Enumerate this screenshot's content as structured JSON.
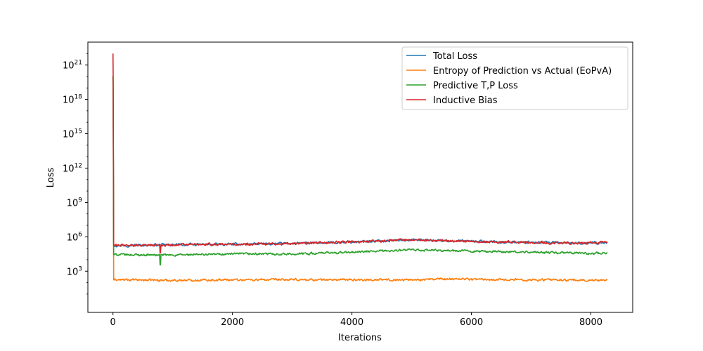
{
  "chart_data": {
    "type": "line",
    "title": "",
    "xlabel": "Iterations",
    "ylabel": "Loss",
    "xlim": [
      -420,
      8700
    ],
    "ylim_log10": [
      -0.6,
      23.0
    ],
    "yscale": "log",
    "grid": false,
    "legend_position": "top-right",
    "x_ticks": [
      {
        "value": 0,
        "label": "0"
      },
      {
        "value": 2000,
        "label": "2000"
      },
      {
        "value": 4000,
        "label": "4000"
      },
      {
        "value": 6000,
        "label": "6000"
      },
      {
        "value": 8000,
        "label": "8000"
      }
    ],
    "y_ticks": [
      {
        "exp": 3,
        "base": "10",
        "sup": "3"
      },
      {
        "exp": 6,
        "base": "10",
        "sup": "6"
      },
      {
        "exp": 9,
        "base": "10",
        "sup": "9"
      },
      {
        "exp": 12,
        "base": "10",
        "sup": "12"
      },
      {
        "exp": 15,
        "base": "10",
        "sup": "15"
      },
      {
        "exp": 18,
        "base": "10",
        "sup": "18"
      },
      {
        "exp": 21,
        "base": "10",
        "sup": "21"
      }
    ],
    "series": [
      {
        "name": "Total Loss",
        "color": "#1f77b4",
        "spike_peak_log10": 20.0,
        "baseline_log10": [
          [
            0,
            5.25
          ],
          [
            1000,
            5.3
          ],
          [
            2000,
            5.35
          ],
          [
            3000,
            5.4
          ],
          [
            4000,
            5.55
          ],
          [
            5000,
            5.75
          ],
          [
            6000,
            5.6
          ],
          [
            7000,
            5.5
          ],
          [
            8000,
            5.45
          ],
          [
            8280,
            5.5
          ]
        ],
        "noise_log10": 0.18,
        "dips": []
      },
      {
        "name": "Entropy of Prediction vs Actual (EoPvA)",
        "color": "#ff7f0e",
        "spike_peak_log10": 20.0,
        "baseline_log10": [
          [
            0,
            2.25
          ],
          [
            1000,
            2.2
          ],
          [
            2000,
            2.25
          ],
          [
            3000,
            2.25
          ],
          [
            4000,
            2.25
          ],
          [
            5000,
            2.25
          ],
          [
            5800,
            2.35
          ],
          [
            6000,
            2.3
          ],
          [
            7000,
            2.25
          ],
          [
            8000,
            2.2
          ],
          [
            8280,
            2.25
          ]
        ],
        "noise_log10": 0.16,
        "dips": []
      },
      {
        "name": "Predictive T,P Loss",
        "color": "#2ca02c",
        "spike_peak_log10": 20.0,
        "baseline_log10": [
          [
            0,
            4.45
          ],
          [
            1000,
            4.4
          ],
          [
            2000,
            4.5
          ],
          [
            3000,
            4.5
          ],
          [
            4000,
            4.65
          ],
          [
            5000,
            4.85
          ],
          [
            6000,
            4.75
          ],
          [
            7000,
            4.65
          ],
          [
            8000,
            4.55
          ],
          [
            8280,
            4.6
          ]
        ],
        "noise_log10": 0.16,
        "dips": [
          {
            "x": 790,
            "log10": 3.55
          }
        ]
      },
      {
        "name": "Inductive Bias",
        "color": "#d62728",
        "spike_peak_log10": 22.0,
        "baseline_log10": [
          [
            0,
            5.25
          ],
          [
            1000,
            5.3
          ],
          [
            2000,
            5.35
          ],
          [
            3000,
            5.4
          ],
          [
            4000,
            5.55
          ],
          [
            5000,
            5.75
          ],
          [
            6000,
            5.6
          ],
          [
            7000,
            5.5
          ],
          [
            8000,
            5.45
          ],
          [
            8280,
            5.5
          ]
        ],
        "noise_log10": 0.18,
        "dips": [
          {
            "x": 790,
            "log10": 4.6
          }
        ]
      }
    ]
  }
}
